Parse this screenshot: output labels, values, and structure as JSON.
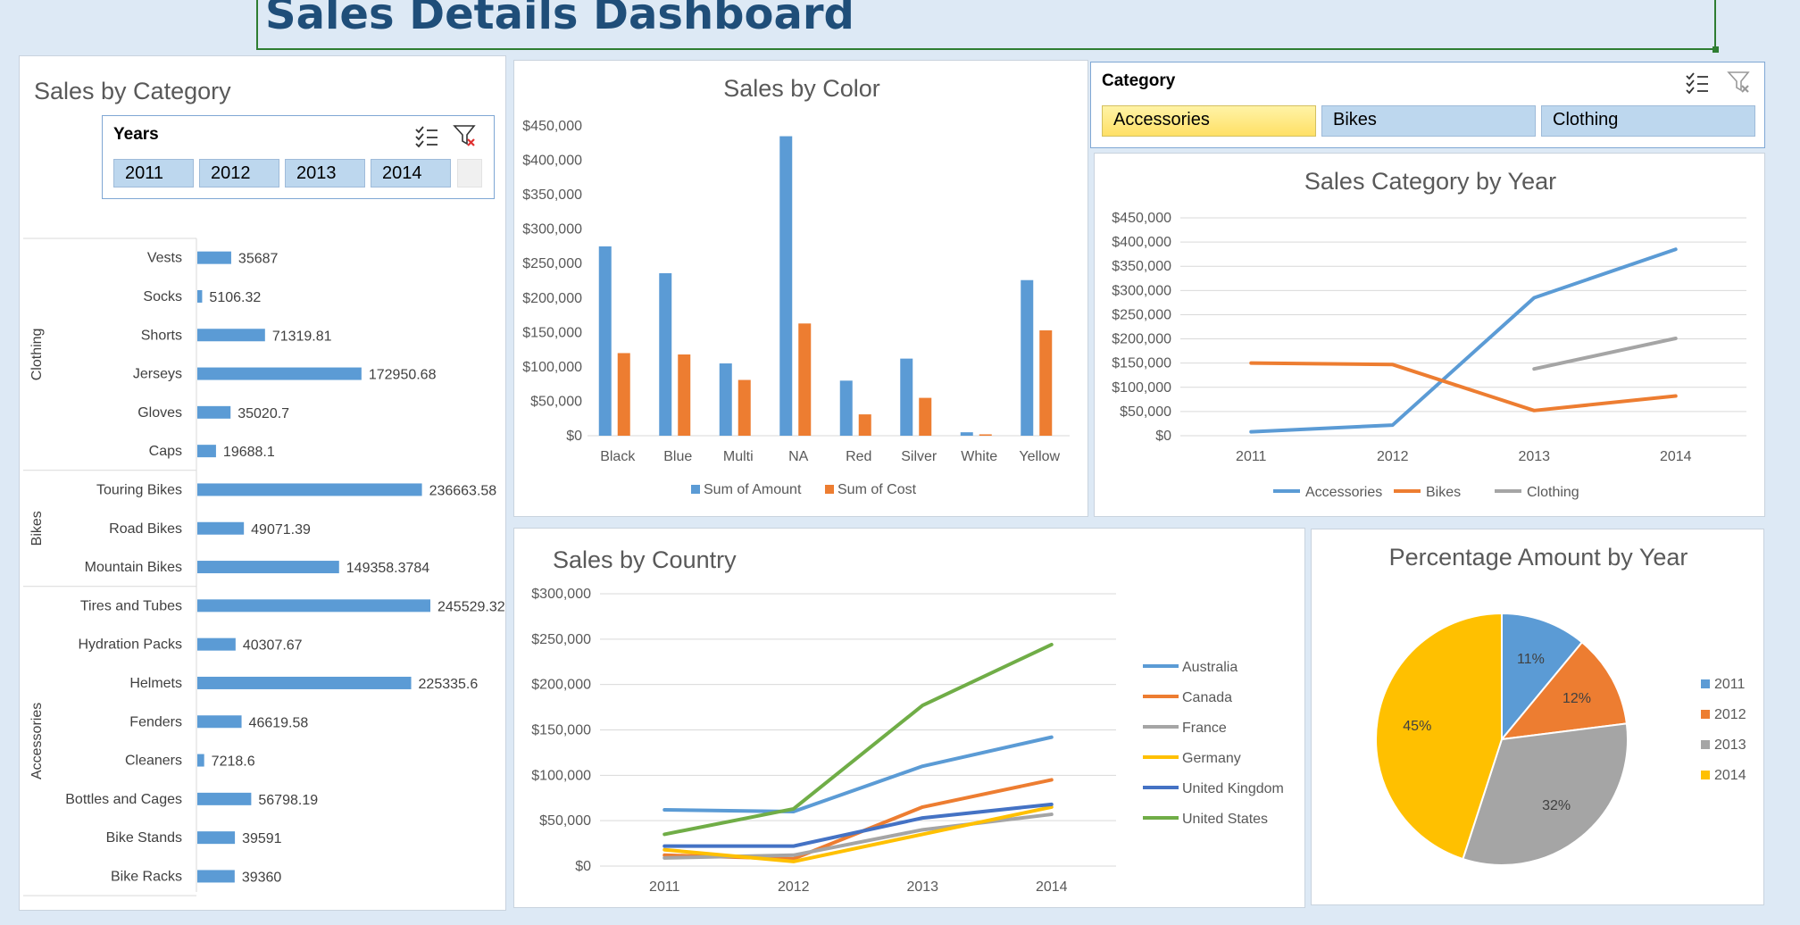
{
  "dashboard": {
    "title": "Sales Details Dashboard"
  },
  "slicers": {
    "years": {
      "title": "Years",
      "items": [
        "2011",
        "2012",
        "2013",
        "2014"
      ]
    },
    "category": {
      "title": "Category",
      "items": [
        "Accessories",
        "Bikes",
        "Clothing"
      ],
      "selected": "Accessories"
    }
  },
  "colors": {
    "blue": "#5b9bd5",
    "orange": "#ed7d31",
    "gray": "#a5a5a5",
    "yellow": "#ffc000",
    "darkblue": "#4472c4",
    "green": "#70ad47",
    "title": "#1f4e79"
  },
  "chart_data": [
    {
      "id": "sales_by_category",
      "type": "bar",
      "orientation": "horizontal",
      "title": "Sales by Category",
      "groups": [
        {
          "name": "Clothing",
          "items": [
            {
              "label": "Vests",
              "value": 35687,
              "display": "35687"
            },
            {
              "label": "Socks",
              "value": 5106.32,
              "display": "5106.32"
            },
            {
              "label": "Shorts",
              "value": 71319.81,
              "display": "71319.81"
            },
            {
              "label": "Jerseys",
              "value": 172950.68,
              "display": "172950.68"
            },
            {
              "label": "Gloves",
              "value": 35020.7,
              "display": "35020.7"
            },
            {
              "label": "Caps",
              "value": 19688.1,
              "display": "19688.1"
            }
          ]
        },
        {
          "name": "Bikes",
          "items": [
            {
              "label": "Touring Bikes",
              "value": 236663.58,
              "display": "236663.58"
            },
            {
              "label": "Road Bikes",
              "value": 49071.39,
              "display": "49071.39"
            },
            {
              "label": "Mountain Bikes",
              "value": 149358.3784,
              "display": "149358.3784"
            }
          ]
        },
        {
          "name": "Accessories",
          "items": [
            {
              "label": "Tires and Tubes",
              "value": 245529.32,
              "display": "245529.32"
            },
            {
              "label": "Hydration Packs",
              "value": 40307.67,
              "display": "40307.67"
            },
            {
              "label": "Helmets",
              "value": 225335.6,
              "display": "225335.6"
            },
            {
              "label": "Fenders",
              "value": 46619.58,
              "display": "46619.58"
            },
            {
              "label": "Cleaners",
              "value": 7218.6,
              "display": "7218.6"
            },
            {
              "label": "Bottles and Cages",
              "value": 56798.19,
              "display": "56798.19"
            },
            {
              "label": "Bike Stands",
              "value": 39591,
              "display": "39591"
            },
            {
              "label": "Bike Racks",
              "value": 39360,
              "display": "39360"
            }
          ]
        }
      ],
      "xlim": [
        0,
        250000
      ]
    },
    {
      "id": "sales_by_color",
      "type": "bar",
      "title": "Sales by Color",
      "categories": [
        "Black",
        "Blue",
        "Multi",
        "NA",
        "Red",
        "Silver",
        "White",
        "Yellow"
      ],
      "series": [
        {
          "name": "Sum of Amount",
          "color": "#5b9bd5",
          "values": [
            275000,
            236000,
            105000,
            435000,
            80000,
            112000,
            5000,
            226000
          ]
        },
        {
          "name": "Sum of Cost",
          "color": "#ed7d31",
          "values": [
            120000,
            118000,
            81000,
            163000,
            31000,
            55000,
            2000,
            153000
          ]
        }
      ],
      "ylim": [
        0,
        450000
      ],
      "yticks": [
        "$0",
        "$50,000",
        "$100,000",
        "$150,000",
        "$200,000",
        "$250,000",
        "$300,000",
        "$350,000",
        "$400,000",
        "$450,000"
      ],
      "legend": "bottom"
    },
    {
      "id": "sales_category_by_year",
      "type": "line",
      "title": "Sales Category by Year",
      "x": [
        "2011",
        "2012",
        "2013",
        "2014"
      ],
      "series": [
        {
          "name": "Accessories",
          "color": "#5b9bd5",
          "values": [
            8000,
            22000,
            285000,
            385000
          ]
        },
        {
          "name": "Bikes",
          "color": "#ed7d31",
          "values": [
            150000,
            147000,
            52000,
            82000
          ]
        },
        {
          "name": "Clothing",
          "color": "#a5a5a5",
          "values": [
            null,
            null,
            138000,
            201000
          ]
        }
      ],
      "ylim": [
        0,
        450000
      ],
      "yticks": [
        "$0",
        "$50,000",
        "$100,000",
        "$150,000",
        "$200,000",
        "$250,000",
        "$300,000",
        "$350,000",
        "$400,000",
        "$450,000"
      ],
      "grid": true,
      "legend": "bottom"
    },
    {
      "id": "sales_by_country",
      "type": "line",
      "title": "Sales by Country",
      "x": [
        "2011",
        "2012",
        "2013",
        "2014"
      ],
      "series": [
        {
          "name": "Australia",
          "color": "#5b9bd5",
          "values": [
            62000,
            60000,
            110000,
            142000
          ]
        },
        {
          "name": "Canada",
          "color": "#ed7d31",
          "values": [
            12000,
            8000,
            65000,
            95000
          ]
        },
        {
          "name": "France",
          "color": "#a5a5a5",
          "values": [
            9000,
            12000,
            40000,
            57000
          ]
        },
        {
          "name": "Germany",
          "color": "#ffc000",
          "values": [
            18000,
            5000,
            35000,
            65000
          ]
        },
        {
          "name": "United Kingdom",
          "color": "#4472c4",
          "values": [
            22000,
            22000,
            53000,
            68000
          ]
        },
        {
          "name": "United States",
          "color": "#70ad47",
          "values": [
            35000,
            63000,
            177000,
            244000
          ]
        }
      ],
      "ylim": [
        0,
        300000
      ],
      "yticks": [
        "$0",
        "$50,000",
        "$100,000",
        "$150,000",
        "$200,000",
        "$250,000",
        "$300,000"
      ],
      "grid": true,
      "legend": "right"
    },
    {
      "id": "percentage_amount_by_year",
      "type": "pie",
      "title": "Percentage Amount by Year",
      "slices": [
        {
          "label": "2011",
          "value": 11,
          "display": "11%",
          "color": "#5b9bd5"
        },
        {
          "label": "2012",
          "value": 12,
          "display": "12%",
          "color": "#ed7d31"
        },
        {
          "label": "2013",
          "value": 32,
          "display": "32%",
          "color": "#a5a5a5"
        },
        {
          "label": "2014",
          "value": 45,
          "display": "45%",
          "color": "#ffc000"
        }
      ],
      "legend": "right"
    }
  ]
}
